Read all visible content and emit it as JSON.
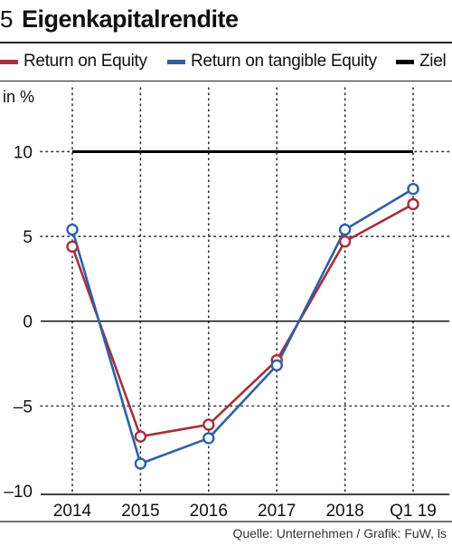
{
  "figure_number": "5",
  "title": "Eigenkapitalrendite",
  "unit_label": "in %",
  "source": "Quelle: Unternehmen / Grafik: FuW, ls",
  "colors": {
    "roe": "#a3303a",
    "rote": "#2f5fa8",
    "target": "#000000"
  },
  "chart_data": {
    "type": "line",
    "categories": [
      "2014",
      "2015",
      "2016",
      "2017",
      "2018",
      "Q1 19"
    ],
    "ylim": [
      -10,
      12
    ],
    "yticks": [
      {
        "value": 10,
        "label": "10"
      },
      {
        "value": 5,
        "label": "5"
      },
      {
        "value": 0,
        "label": "0"
      },
      {
        "value": -5,
        "label": "–5"
      },
      {
        "value": -10,
        "label": "–10"
      }
    ],
    "series": [
      {
        "name": "Return on Equity",
        "color": "#a3303a",
        "values": [
          4.4,
          -6.8,
          -6.1,
          -2.3,
          4.7,
          6.9
        ]
      },
      {
        "name": "Return on tangible Equity",
        "color": "#2f5fa8",
        "values": [
          5.4,
          -8.4,
          -6.9,
          -2.6,
          5.4,
          7.8
        ]
      },
      {
        "name": "Ziel",
        "color": "#000000",
        "values": [
          10,
          10,
          10,
          10,
          10,
          10
        ],
        "markers": false
      }
    ]
  }
}
